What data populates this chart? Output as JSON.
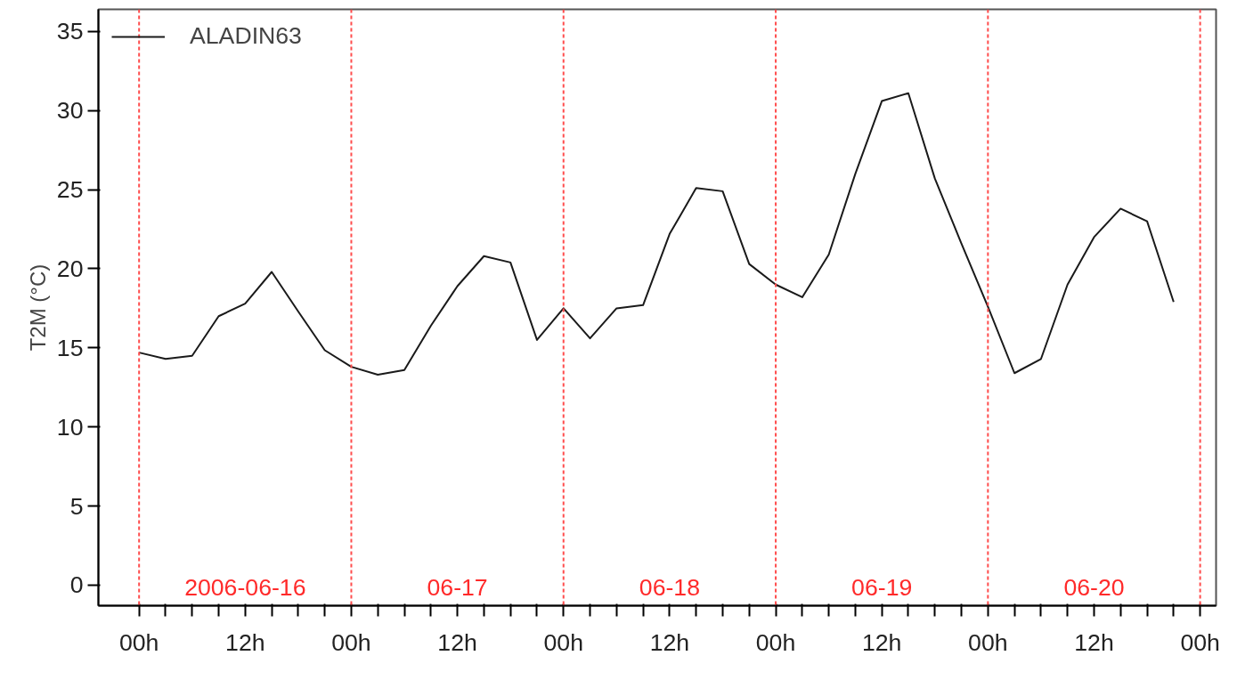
{
  "chart_data": {
    "type": "line",
    "ylabel": "T2M (°C)",
    "x": [
      "2006-06-16T00:00",
      "2006-06-16T03:00",
      "2006-06-16T06:00",
      "2006-06-16T09:00",
      "2006-06-16T12:00",
      "2006-06-16T15:00",
      "2006-06-16T18:00",
      "2006-06-16T21:00",
      "2006-06-17T00:00",
      "2006-06-17T03:00",
      "2006-06-17T06:00",
      "2006-06-17T09:00",
      "2006-06-17T12:00",
      "2006-06-17T15:00",
      "2006-06-17T18:00",
      "2006-06-17T21:00",
      "2006-06-18T00:00",
      "2006-06-18T03:00",
      "2006-06-18T06:00",
      "2006-06-18T09:00",
      "2006-06-18T12:00",
      "2006-06-18T15:00",
      "2006-06-18T18:00",
      "2006-06-18T21:00",
      "2006-06-19T00:00",
      "2006-06-19T03:00",
      "2006-06-19T06:00",
      "2006-06-19T09:00",
      "2006-06-19T12:00",
      "2006-06-19T15:00",
      "2006-06-19T18:00",
      "2006-06-19T21:00",
      "2006-06-20T00:00",
      "2006-06-20T03:00",
      "2006-06-20T06:00",
      "2006-06-20T09:00",
      "2006-06-20T12:00",
      "2006-06-20T15:00",
      "2006-06-20T18:00",
      "2006-06-20T21:00"
    ],
    "series": [
      {
        "name": "ALADIN63",
        "color": "#1a1a1a",
        "values": [
          14.7,
          14.3,
          14.5,
          17.0,
          17.8,
          19.8,
          17.3,
          14.85,
          13.8,
          13.3,
          13.6,
          16.4,
          18.9,
          20.8,
          20.4,
          15.5,
          17.5,
          15.6,
          17.5,
          17.7,
          22.2,
          25.1,
          24.9,
          20.3,
          19.0,
          18.2,
          20.9,
          26.0,
          30.6,
          31.1,
          25.7,
          21.6,
          17.6,
          13.4,
          14.3,
          19.0,
          22.0,
          23.8,
          23.0,
          17.9
        ]
      }
    ],
    "xlim": [
      "2006-06-15T19:24",
      "2006-06-21T01:48"
    ],
    "ylim": [
      -1.3,
      36.4
    ],
    "xticks": [
      {
        "value": "2006-06-16T00:00",
        "label": "00h"
      },
      {
        "value": "2006-06-16T03:00",
        "label": null
      },
      {
        "value": "2006-06-16T06:00",
        "label": null
      },
      {
        "value": "2006-06-16T09:00",
        "label": null
      },
      {
        "value": "2006-06-16T12:00",
        "label": "12h"
      },
      {
        "value": "2006-06-16T15:00",
        "label": null
      },
      {
        "value": "2006-06-16T18:00",
        "label": null
      },
      {
        "value": "2006-06-16T21:00",
        "label": null
      },
      {
        "value": "2006-06-17T00:00",
        "label": "00h"
      },
      {
        "value": "2006-06-17T03:00",
        "label": null
      },
      {
        "value": "2006-06-17T06:00",
        "label": null
      },
      {
        "value": "2006-06-17T09:00",
        "label": null
      },
      {
        "value": "2006-06-17T12:00",
        "label": "12h"
      },
      {
        "value": "2006-06-17T15:00",
        "label": null
      },
      {
        "value": "2006-06-17T18:00",
        "label": null
      },
      {
        "value": "2006-06-17T21:00",
        "label": null
      },
      {
        "value": "2006-06-18T00:00",
        "label": "00h"
      },
      {
        "value": "2006-06-18T03:00",
        "label": null
      },
      {
        "value": "2006-06-18T06:00",
        "label": null
      },
      {
        "value": "2006-06-18T09:00",
        "label": null
      },
      {
        "value": "2006-06-18T12:00",
        "label": "12h"
      },
      {
        "value": "2006-06-18T15:00",
        "label": null
      },
      {
        "value": "2006-06-18T18:00",
        "label": null
      },
      {
        "value": "2006-06-18T21:00",
        "label": null
      },
      {
        "value": "2006-06-19T00:00",
        "label": "00h"
      },
      {
        "value": "2006-06-19T03:00",
        "label": null
      },
      {
        "value": "2006-06-19T06:00",
        "label": null
      },
      {
        "value": "2006-06-19T09:00",
        "label": null
      },
      {
        "value": "2006-06-19T12:00",
        "label": "12h"
      },
      {
        "value": "2006-06-19T15:00",
        "label": null
      },
      {
        "value": "2006-06-19T18:00",
        "label": null
      },
      {
        "value": "2006-06-19T21:00",
        "label": null
      },
      {
        "value": "2006-06-20T00:00",
        "label": "00h"
      },
      {
        "value": "2006-06-20T03:00",
        "label": null
      },
      {
        "value": "2006-06-20T06:00",
        "label": null
      },
      {
        "value": "2006-06-20T09:00",
        "label": null
      },
      {
        "value": "2006-06-20T12:00",
        "label": "12h"
      },
      {
        "value": "2006-06-20T15:00",
        "label": null
      },
      {
        "value": "2006-06-20T18:00",
        "label": null
      },
      {
        "value": "2006-06-20T21:00",
        "label": null
      },
      {
        "value": "2006-06-21T00:00",
        "label": "00h"
      }
    ],
    "yticks": [
      0,
      5,
      10,
      15,
      20,
      25,
      30,
      35
    ],
    "ref_lines": [
      {
        "axis": "x",
        "value": "2006-06-16T00:00",
        "color": "#ff4d4d",
        "line_style": "dashed"
      },
      {
        "axis": "x",
        "value": "2006-06-17T00:00",
        "color": "#ff4d4d",
        "line_style": "dashed"
      },
      {
        "axis": "x",
        "value": "2006-06-18T00:00",
        "color": "#ff4d4d",
        "line_style": "dashed"
      },
      {
        "axis": "x",
        "value": "2006-06-19T00:00",
        "color": "#ff4d4d",
        "line_style": "dashed"
      },
      {
        "axis": "x",
        "value": "2006-06-20T00:00",
        "color": "#ff4d4d",
        "line_style": "dashed"
      },
      {
        "axis": "x",
        "value": "2006-06-21T00:00",
        "color": "#ff4d4d",
        "line_style": "dashed"
      }
    ],
    "annotations": [
      "2006-06-16",
      "06-17",
      "06-18",
      "06-19",
      "06-20"
    ],
    "grid": false,
    "legend": "top left",
    "marker": "none",
    "line_style": "solid"
  }
}
